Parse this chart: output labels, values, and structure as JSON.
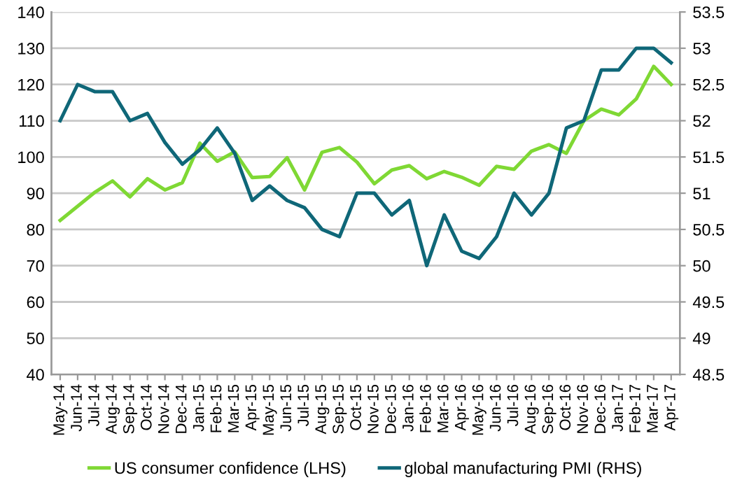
{
  "chart_data": {
    "type": "line",
    "categories": [
      "May-14",
      "Jun-14",
      "Jul-14",
      "Aug-14",
      "Sep-14",
      "Oct-14",
      "Nov-14",
      "Dec-14",
      "Jan-15",
      "Feb-15",
      "Mar-15",
      "Apr-15",
      "May-15",
      "Jun-15",
      "Jul-15",
      "Aug-15",
      "Sep-15",
      "Oct-15",
      "Nov-15",
      "Dec-15",
      "Jan-16",
      "Feb-16",
      "Mar-16",
      "Apr-16",
      "May-16",
      "Jun-16",
      "Jul-16",
      "Aug-16",
      "Sep-16",
      "Oct-16",
      "Nov-16",
      "Dec-16",
      "Jan-17",
      "Feb-17",
      "Mar-17",
      "Apr-17"
    ],
    "series": [
      {
        "name": "US consumer confidence (LHS)",
        "color": "#7fd834",
        "values": [
          82.5,
          86.4,
          90.3,
          93.4,
          89,
          94,
          90.9,
          92.9,
          103.8,
          98.8,
          101.4,
          94.3,
          94.6,
          99.8,
          90.9,
          101.3,
          102.6,
          98.6,
          92.6,
          96.4,
          97.6,
          94,
          96,
          94.4,
          92.2,
          97.4,
          96.6,
          101.6,
          103.4,
          101,
          110,
          113.2,
          111.6,
          116,
          125,
          120
        ]
      },
      {
        "name": "global manufacturing PMI (RHS)",
        "color": "#0f6778",
        "axis": "y2",
        "values": [
          52.0,
          52.5,
          52.4,
          52.4,
          52.0,
          52.1,
          51.7,
          51.4,
          51.6,
          51.9,
          51.55,
          50.9,
          51.1,
          50.9,
          50.8,
          50.5,
          50.4,
          51.0,
          51.0,
          50.7,
          50.9,
          50.0,
          50.7,
          50.2,
          50.1,
          50.4,
          51.0,
          50.7,
          51.0,
          51.9,
          52.0,
          52.7,
          52.7,
          53.0,
          53.0,
          52.8
        ]
      }
    ],
    "ylim": [
      40,
      140
    ],
    "yticks": [
      40,
      50,
      60,
      70,
      80,
      90,
      100,
      110,
      120,
      130,
      140
    ],
    "y2lim": [
      48.5,
      53.5
    ],
    "y2ticks": [
      48.5,
      49,
      49.5,
      50,
      50.5,
      51,
      51.5,
      52,
      52.5,
      53,
      53.5
    ],
    "grid": "y",
    "legend": "bottom",
    "marker": "none",
    "line_style": "solid"
  }
}
